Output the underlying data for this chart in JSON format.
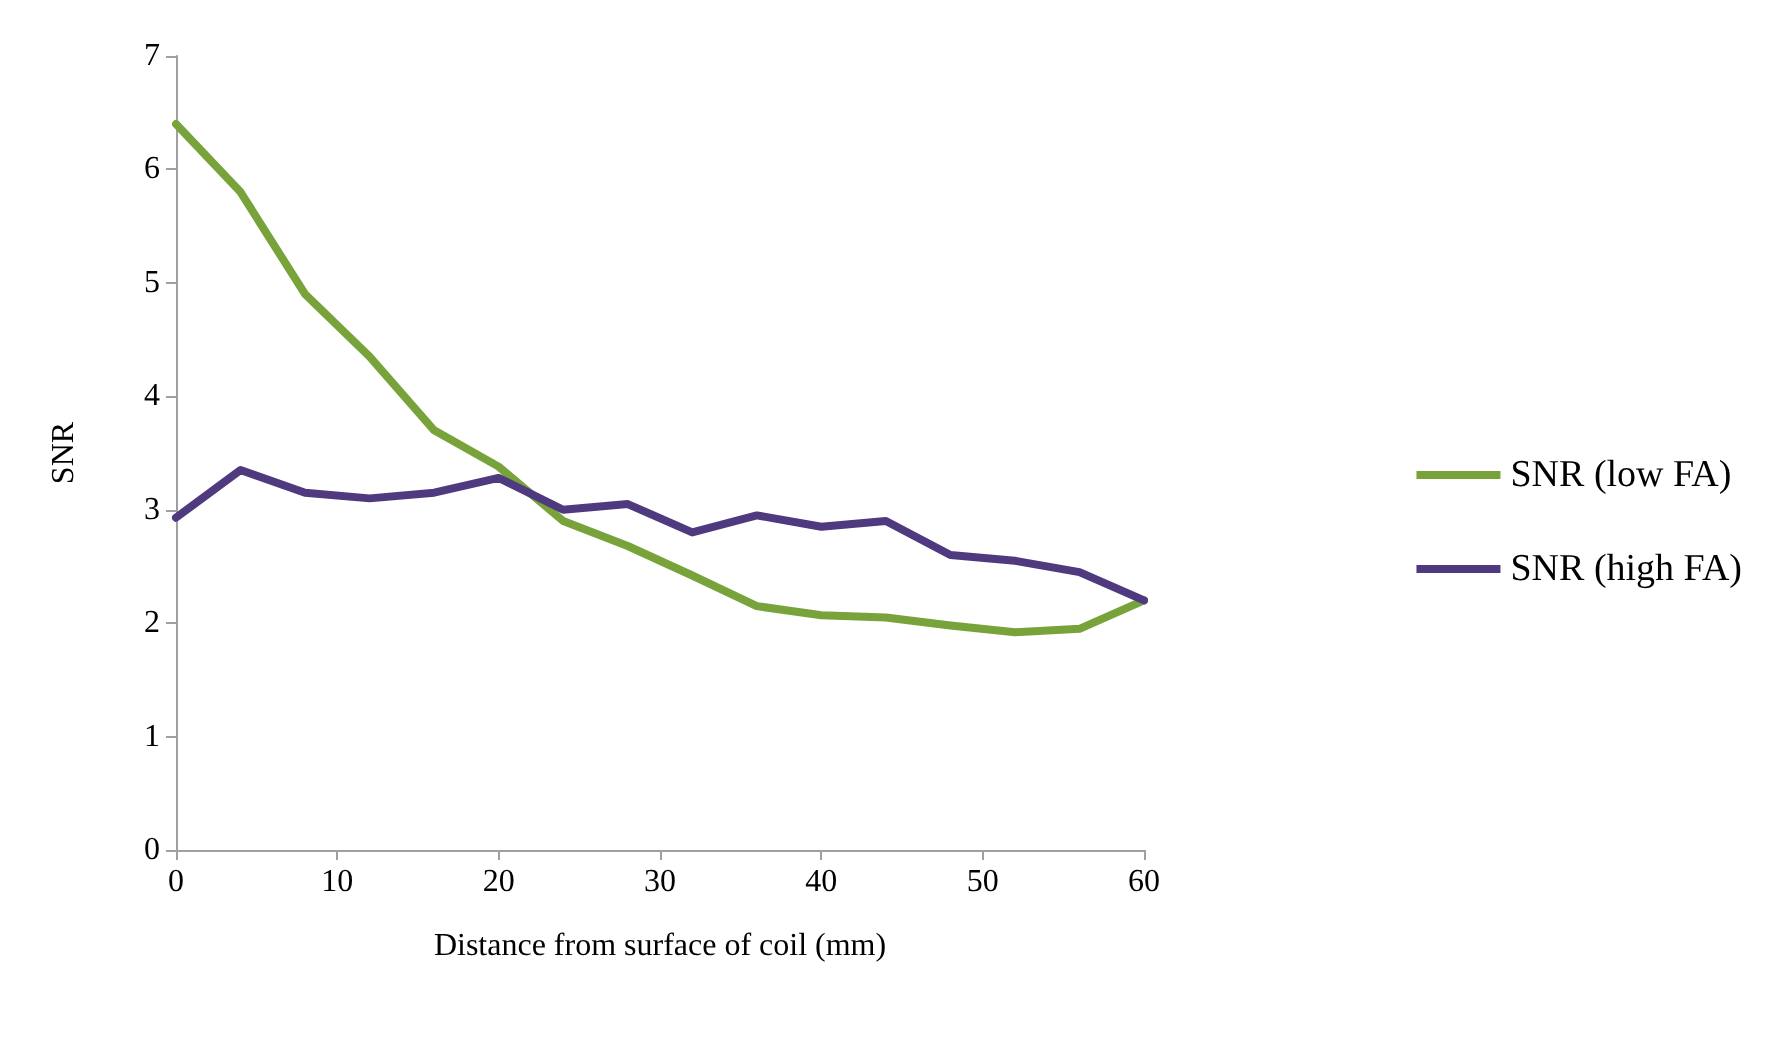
{
  "chart_data": {
    "type": "line",
    "xlabel": "Distance from surface of coil (mm)",
    "ylabel": "SNR",
    "x": [
      0,
      4,
      8,
      12,
      16,
      20,
      24,
      28,
      32,
      36,
      40,
      44,
      48,
      52,
      56,
      60
    ],
    "series": [
      {
        "name": "SNR (low FA)",
        "color": "#77a33a",
        "values": [
          6.4,
          5.8,
          4.9,
          4.35,
          3.7,
          3.38,
          2.9,
          2.68,
          2.42,
          2.15,
          2.07,
          2.05,
          1.98,
          1.92,
          1.95,
          2.2
        ]
      },
      {
        "name": "SNR (high FA)",
        "color": "#4f3a80",
        "values": [
          2.93,
          3.35,
          3.15,
          3.1,
          3.15,
          3.28,
          3.0,
          3.05,
          2.8,
          2.95,
          2.85,
          2.9,
          2.6,
          2.55,
          2.45,
          2.2
        ]
      }
    ],
    "xlim": [
      0,
      60
    ],
    "xticks": [
      0,
      10,
      20,
      30,
      40,
      50,
      60
    ],
    "ylim": [
      0,
      7
    ],
    "yticks": [
      0,
      1,
      2,
      3,
      4,
      5,
      6,
      7
    ],
    "grid": false,
    "legend": "right",
    "marker": "none",
    "line_style": "solid"
  }
}
